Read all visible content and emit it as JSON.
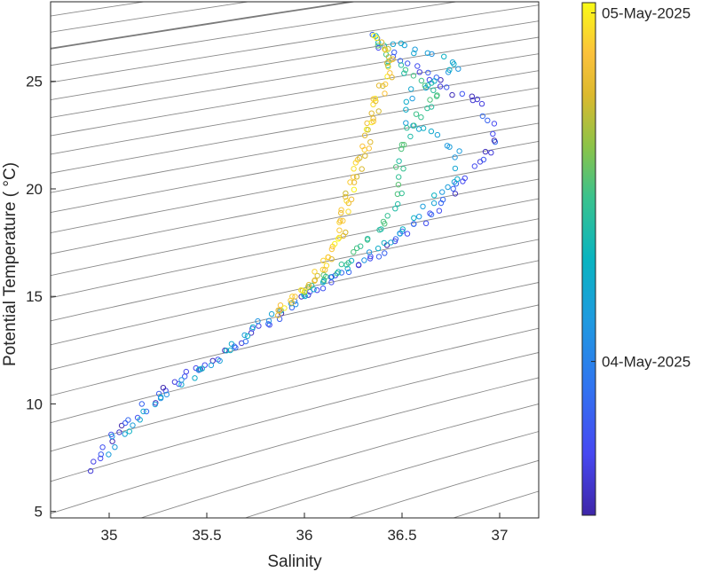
{
  "chart_data": {
    "type": "scatter",
    "xlabel": "Salinity",
    "ylabel": "Potential Temperature ( °C)",
    "xlim": [
      34.7,
      37.2
    ],
    "ylim": [
      4.7,
      28.7
    ],
    "xticks": [
      "35",
      "35.5",
      "36",
      "36.5",
      "37"
    ],
    "yticks": [
      "5",
      "10",
      "15",
      "20",
      "25"
    ],
    "grid": false,
    "contours": "density isopycnals (light gray), one highlighted (dark gray)",
    "colorbar": {
      "ticks": [
        "04-May-2025",
        "05-May-2025"
      ],
      "tick_positions": [
        0.3,
        0.98
      ],
      "colormap": "parula",
      "placement": "right"
    },
    "series": [
      {
        "description": "early cast (blue/purple), t≈0.0-0.25",
        "path": [
          [
            34.93,
            6.9
          ],
          [
            34.96,
            7.6
          ],
          [
            35.0,
            8.3
          ],
          [
            35.1,
            9.1
          ],
          [
            35.2,
            10.0
          ],
          [
            35.35,
            11.2
          ],
          [
            35.5,
            11.8
          ],
          [
            35.7,
            13.0
          ],
          [
            35.85,
            14.0
          ],
          [
            36.0,
            15.0
          ],
          [
            36.15,
            15.8
          ],
          [
            36.3,
            16.6
          ],
          [
            36.45,
            17.5
          ],
          [
            36.6,
            18.5
          ],
          [
            36.75,
            19.6
          ],
          [
            36.85,
            20.8
          ],
          [
            36.95,
            22.0
          ],
          [
            36.97,
            23.0
          ],
          [
            36.9,
            24.0
          ],
          [
            36.75,
            24.6
          ],
          [
            36.6,
            25.4
          ],
          [
            36.5,
            26.0
          ],
          [
            36.42,
            26.5
          ],
          [
            36.35,
            27.1
          ]
        ],
        "t_range": [
          0.0,
          0.25
        ],
        "count": 110
      },
      {
        "description": "mid cast (cyan/teal), t≈0.35-0.5",
        "path": [
          [
            34.98,
            7.8
          ],
          [
            35.05,
            8.5
          ],
          [
            35.2,
            9.8
          ],
          [
            35.4,
            11.2
          ],
          [
            35.6,
            12.5
          ],
          [
            35.8,
            13.8
          ],
          [
            36.0,
            15.0
          ],
          [
            36.2,
            16.2
          ],
          [
            36.35,
            17.0
          ],
          [
            36.5,
            18.0
          ],
          [
            36.6,
            19.0
          ],
          [
            36.7,
            19.8
          ],
          [
            36.8,
            20.5
          ],
          [
            36.78,
            21.8
          ],
          [
            36.6,
            22.8
          ],
          [
            36.5,
            23.2
          ],
          [
            36.55,
            24.5
          ],
          [
            36.7,
            25.2
          ],
          [
            36.8,
            25.8
          ],
          [
            36.6,
            26.3
          ],
          [
            36.45,
            26.8
          ],
          [
            36.36,
            27.0
          ]
        ],
        "t_range": [
          0.35,
          0.5
        ],
        "count": 90
      },
      {
        "description": "late-mid cast (green), t≈0.55-0.68",
        "path": [
          [
            36.0,
            15.2
          ],
          [
            36.2,
            16.5
          ],
          [
            36.35,
            17.8
          ],
          [
            36.45,
            19.0
          ],
          [
            36.5,
            20.0
          ],
          [
            36.48,
            21.5
          ],
          [
            36.55,
            22.8
          ],
          [
            36.6,
            23.6
          ],
          [
            36.7,
            24.4
          ],
          [
            36.6,
            25.0
          ],
          [
            36.45,
            25.8
          ],
          [
            36.38,
            26.8
          ]
        ],
        "t_range": [
          0.55,
          0.68
        ],
        "count": 55
      },
      {
        "description": "late cast (yellow/orange), t≈0.78-1.0",
        "path": [
          [
            35.85,
            14.2
          ],
          [
            35.95,
            15.0
          ],
          [
            36.05,
            15.8
          ],
          [
            36.12,
            16.6
          ],
          [
            36.18,
            17.6
          ],
          [
            36.2,
            18.6
          ],
          [
            36.22,
            19.5
          ],
          [
            36.25,
            20.4
          ],
          [
            36.28,
            21.2
          ],
          [
            36.32,
            22.2
          ],
          [
            36.35,
            23.2
          ],
          [
            36.38,
            24.2
          ],
          [
            36.42,
            25.2
          ],
          [
            36.45,
            26.0
          ],
          [
            36.42,
            26.6
          ],
          [
            36.38,
            27.0
          ]
        ],
        "t_range": [
          0.78,
          1.0
        ],
        "count": 90
      }
    ],
    "seed": 11
  }
}
